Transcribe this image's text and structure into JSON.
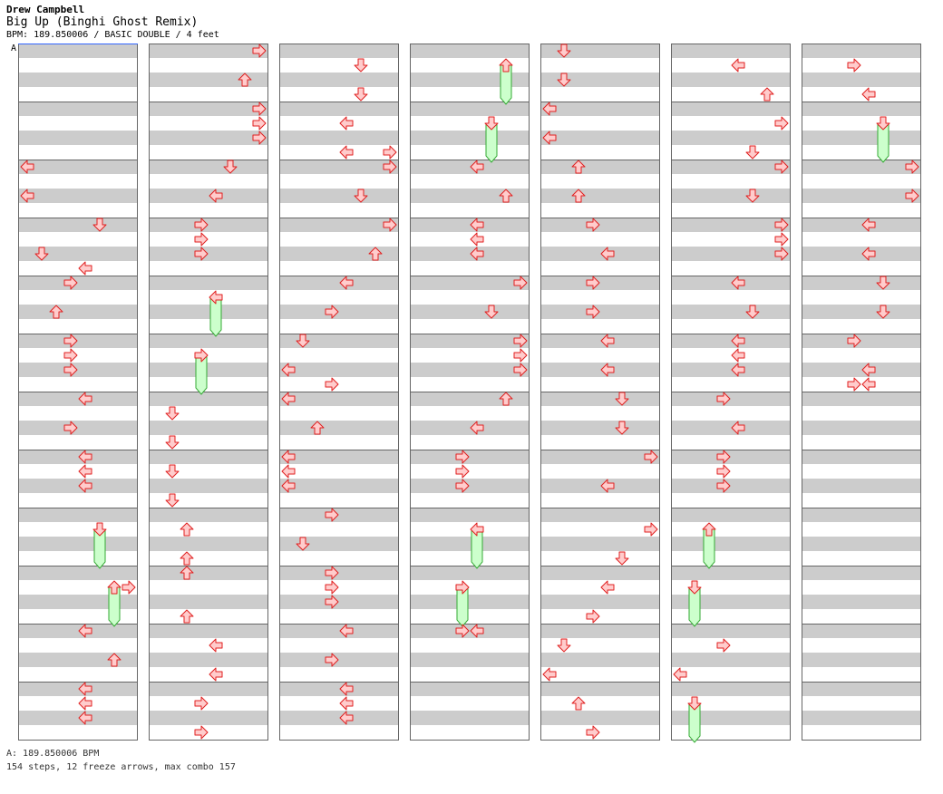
{
  "header": {
    "author": "Drew Campbell",
    "song_title": "Big Up (Binghi Ghost Remix)",
    "info": "BPM: 189.850006 / BASIC DOUBLE / 4 feet"
  },
  "marker": "A",
  "footer": {
    "bpm_line": "A: 189.850006 BPM",
    "stats_line": "154 steps, 12 freeze arrows, max combo 157"
  },
  "colors": {
    "stripe": "#cccccc",
    "arrow_fill": "#ffcccc",
    "arrow_stroke": "#e02020",
    "freeze_fill": "#ccffcc",
    "freeze_stroke": "#33aa33",
    "marker_line": "#3366ff"
  },
  "chart_data": {
    "type": "step-chart",
    "layout": "7 columns x 12 measures, 8 lanes per measure (double), 4 rows per measure",
    "lanes": [
      "P1-left",
      "P1-down",
      "P1-up",
      "P1-right",
      "P2-left",
      "P2-down",
      "P2-up",
      "P2-right"
    ],
    "arrows": [
      [
        [
          0,
          2,
          0,
          0
        ],
        [
          0,
          2,
          2,
          0
        ],
        [
          0,
          3,
          0,
          5
        ],
        [
          0,
          3,
          2,
          1
        ],
        [
          0,
          3,
          3,
          4
        ],
        [
          0,
          4,
          0,
          3
        ],
        [
          0,
          4,
          2,
          2
        ],
        [
          0,
          5,
          0,
          3
        ],
        [
          0,
          5,
          1,
          3
        ],
        [
          0,
          5,
          2,
          3
        ],
        [
          0,
          6,
          0,
          4
        ],
        [
          0,
          6,
          2,
          3
        ],
        [
          0,
          7,
          0,
          4
        ],
        [
          0,
          7,
          1,
          4
        ],
        [
          0,
          7,
          2,
          4
        ],
        [
          0,
          9,
          1,
          7
        ],
        [
          0,
          10,
          0,
          4
        ],
        [
          0,
          10,
          2,
          6
        ],
        [
          0,
          11,
          0,
          4
        ],
        [
          0,
          11,
          1,
          4
        ],
        [
          0,
          11,
          2,
          4
        ]
      ],
      [
        [
          1,
          0,
          0,
          7
        ],
        [
          1,
          0,
          2,
          6
        ],
        [
          1,
          1,
          0,
          7
        ],
        [
          1,
          1,
          1,
          7
        ],
        [
          1,
          1,
          2,
          7
        ],
        [
          1,
          2,
          0,
          5
        ],
        [
          1,
          2,
          2,
          4
        ],
        [
          1,
          3,
          0,
          3
        ],
        [
          1,
          3,
          1,
          3
        ],
        [
          1,
          3,
          2,
          3
        ],
        [
          1,
          6,
          1,
          1
        ],
        [
          1,
          6,
          3,
          1
        ],
        [
          1,
          7,
          1,
          1
        ],
        [
          1,
          7,
          3,
          1
        ],
        [
          1,
          8,
          1,
          2
        ],
        [
          1,
          8,
          3,
          2
        ],
        [
          1,
          9,
          0,
          2
        ],
        [
          1,
          9,
          3,
          2
        ],
        [
          1,
          10,
          1,
          4
        ],
        [
          1,
          10,
          3,
          4
        ],
        [
          1,
          11,
          1,
          3
        ],
        [
          1,
          11,
          3,
          3
        ]
      ],
      [
        [
          2,
          0,
          1,
          5
        ],
        [
          2,
          0,
          3,
          5
        ],
        [
          2,
          1,
          1,
          4
        ],
        [
          2,
          1,
          3,
          4
        ],
        [
          2,
          1,
          3,
          7
        ],
        [
          2,
          2,
          0,
          7
        ],
        [
          2,
          2,
          2,
          5
        ],
        [
          2,
          3,
          0,
          7
        ],
        [
          2,
          3,
          2,
          6
        ],
        [
          2,
          4,
          0,
          4
        ],
        [
          2,
          4,
          2,
          3
        ],
        [
          2,
          5,
          0,
          1
        ],
        [
          2,
          5,
          2,
          0
        ],
        [
          2,
          5,
          3,
          3
        ],
        [
          2,
          6,
          0,
          0
        ],
        [
          2,
          6,
          2,
          2
        ],
        [
          2,
          7,
          0,
          0
        ],
        [
          2,
          7,
          1,
          0
        ],
        [
          2,
          7,
          2,
          0
        ],
        [
          2,
          8,
          0,
          3
        ],
        [
          2,
          8,
          2,
          1
        ],
        [
          2,
          9,
          0,
          3
        ],
        [
          2,
          9,
          1,
          3
        ],
        [
          2,
          9,
          2,
          3
        ],
        [
          2,
          10,
          0,
          4
        ],
        [
          2,
          10,
          2,
          3
        ],
        [
          2,
          11,
          0,
          4
        ],
        [
          2,
          11,
          1,
          4
        ],
        [
          2,
          11,
          2,
          4
        ]
      ],
      [
        [
          3,
          2,
          0,
          4
        ],
        [
          3,
          2,
          2,
          6
        ],
        [
          3,
          3,
          0,
          4
        ],
        [
          3,
          3,
          1,
          4
        ],
        [
          3,
          3,
          2,
          4
        ],
        [
          3,
          4,
          0,
          7
        ],
        [
          3,
          4,
          2,
          5
        ],
        [
          3,
          5,
          0,
          7
        ],
        [
          3,
          5,
          1,
          7
        ],
        [
          3,
          5,
          2,
          7
        ],
        [
          3,
          6,
          0,
          6
        ],
        [
          3,
          6,
          2,
          4
        ],
        [
          3,
          7,
          0,
          3
        ],
        [
          3,
          7,
          1,
          3
        ],
        [
          3,
          7,
          2,
          3
        ],
        [
          3,
          10,
          0,
          3
        ],
        [
          3,
          10,
          0,
          4
        ]
      ],
      [
        [
          4,
          0,
          0,
          1
        ],
        [
          4,
          0,
          2,
          1
        ],
        [
          4,
          1,
          0,
          0
        ],
        [
          4,
          1,
          2,
          0
        ],
        [
          4,
          2,
          0,
          2
        ],
        [
          4,
          2,
          2,
          2
        ],
        [
          4,
          3,
          0,
          3
        ],
        [
          4,
          3,
          2,
          4
        ],
        [
          4,
          4,
          0,
          3
        ],
        [
          4,
          4,
          2,
          3
        ],
        [
          4,
          5,
          0,
          4
        ],
        [
          4,
          5,
          2,
          4
        ],
        [
          4,
          6,
          0,
          5
        ],
        [
          4,
          6,
          2,
          5
        ],
        [
          4,
          7,
          0,
          7
        ],
        [
          4,
          7,
          2,
          4
        ],
        [
          4,
          8,
          1,
          7
        ],
        [
          4,
          8,
          3,
          5
        ],
        [
          4,
          9,
          1,
          4
        ],
        [
          4,
          9,
          3,
          3
        ],
        [
          4,
          10,
          1,
          1
        ],
        [
          4,
          10,
          3,
          0
        ],
        [
          4,
          11,
          1,
          2
        ],
        [
          4,
          11,
          3,
          3
        ]
      ],
      [
        [
          5,
          0,
          1,
          4
        ],
        [
          5,
          0,
          3,
          6
        ],
        [
          5,
          1,
          1,
          7
        ],
        [
          5,
          1,
          3,
          5
        ],
        [
          5,
          2,
          0,
          7
        ],
        [
          5,
          2,
          2,
          5
        ],
        [
          5,
          3,
          0,
          7
        ],
        [
          5,
          3,
          1,
          7
        ],
        [
          5,
          3,
          2,
          7
        ],
        [
          5,
          4,
          0,
          4
        ],
        [
          5,
          4,
          2,
          5
        ],
        [
          5,
          5,
          0,
          4
        ],
        [
          5,
          5,
          1,
          4
        ],
        [
          5,
          5,
          2,
          4
        ],
        [
          5,
          6,
          0,
          3
        ],
        [
          5,
          6,
          2,
          4
        ],
        [
          5,
          7,
          0,
          3
        ],
        [
          5,
          7,
          1,
          3
        ],
        [
          5,
          7,
          2,
          3
        ],
        [
          5,
          10,
          1,
          3
        ],
        [
          5,
          10,
          3,
          0
        ]
      ],
      [
        [
          6,
          0,
          1,
          3
        ],
        [
          6,
          0,
          3,
          4
        ],
        [
          6,
          2,
          0,
          7
        ],
        [
          6,
          2,
          2,
          7
        ],
        [
          6,
          3,
          0,
          4
        ],
        [
          6,
          3,
          2,
          4
        ],
        [
          6,
          4,
          0,
          5
        ],
        [
          6,
          4,
          2,
          5
        ],
        [
          6,
          5,
          0,
          3
        ],
        [
          6,
          5,
          2,
          4
        ],
        [
          6,
          5,
          3,
          3
        ],
        [
          6,
          5,
          3,
          4
        ]
      ]
    ],
    "freezes": [
      [
        0,
        8,
        1,
        8,
        3,
        5
      ],
      [
        0,
        9,
        1,
        9,
        3,
        6
      ],
      [
        1,
        4,
        1,
        4,
        3,
        4
      ],
      [
        1,
        5,
        1,
        5,
        3,
        3
      ],
      [
        3,
        0,
        1,
        0,
        3,
        6
      ],
      [
        3,
        1,
        1,
        1,
        3,
        5
      ],
      [
        3,
        8,
        1,
        8,
        3,
        4
      ],
      [
        3,
        9,
        1,
        9,
        3,
        3
      ],
      [
        5,
        8,
        1,
        8,
        3,
        2
      ],
      [
        5,
        9,
        1,
        9,
        3,
        1
      ],
      [
        5,
        11,
        1,
        11,
        3,
        1
      ],
      [
        6,
        1,
        1,
        1,
        3,
        5
      ]
    ]
  }
}
